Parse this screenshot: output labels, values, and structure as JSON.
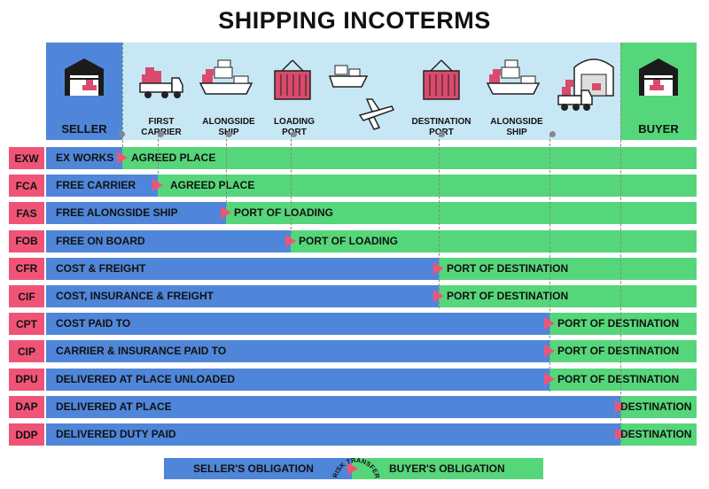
{
  "title": "SHIPPING INCOTERMS",
  "columns": {
    "seller": "SELLER",
    "buyer": "BUYER"
  },
  "stages": [
    {
      "label": "FIRST\nCARRIER"
    },
    {
      "label": "ALONGSIDE\nSHIP"
    },
    {
      "label": "LOADING\nPORT"
    },
    {
      "label": "DESTINATION\nPORT"
    },
    {
      "label": "ALONGSIDE\nSHIP"
    }
  ],
  "terms": [
    {
      "abbr": "EXW",
      "name": "EX WORKS",
      "dest": "AGREED PLACE",
      "transfer": 0
    },
    {
      "abbr": "FCA",
      "name": "FREE CARRIER",
      "dest": "AGREED PLACE",
      "transfer": 1
    },
    {
      "abbr": "FAS",
      "name": "FREE ALONGSIDE SHIP",
      "dest": "PORT OF LOADING",
      "transfer": 2
    },
    {
      "abbr": "FOB",
      "name": "FREE ON BOARD",
      "dest": "PORT OF LOADING",
      "transfer": 3
    },
    {
      "abbr": "CFR",
      "name": "COST & FREIGHT",
      "dest": "PORT OF DESTINATION",
      "transfer": 4
    },
    {
      "abbr": "CIF",
      "name": "COST, INSURANCE & FREIGHT",
      "dest": "PORT OF DESTINATION",
      "transfer": 4
    },
    {
      "abbr": "CPT",
      "name": "COST PAID TO",
      "dest": "PORT OF DESTINATION",
      "transfer": 5
    },
    {
      "abbr": "CIP",
      "name": "CARRIER & INSURANCE PAID TO",
      "dest": "PORT OF DESTINATION",
      "transfer": 5
    },
    {
      "abbr": "DPU",
      "name": "DELIVERED AT PLACE UNLOADED",
      "dest": "PORT OF DESTINATION",
      "transfer": 5
    },
    {
      "abbr": "DAP",
      "name": "DELIVERED AT PLACE",
      "dest": "DESTINATION",
      "transfer": 6
    },
    {
      "abbr": "DDP",
      "name": "DELIVERED DUTY PAID",
      "dest": "DESTINATION",
      "transfer": 6
    }
  ],
  "legend": {
    "seller": "SELLER'S OBLIGATION",
    "risk": "RISK TRANSFER",
    "buyer": "BUYER'S OBLIGATION"
  },
  "colors": {
    "seller": "#4f86d9",
    "buyer": "#56d67a",
    "abbr": "#ef5477",
    "band": "#c7e7f5"
  },
  "icons": [
    "warehouse-icon",
    "truck-icon",
    "cargo-ship-icon",
    "container-icon",
    "airplane-icon",
    "delivery-truck-icon"
  ]
}
